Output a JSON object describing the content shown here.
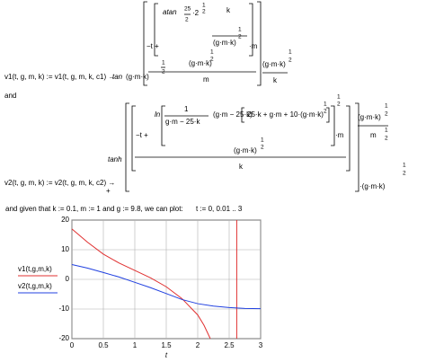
{
  "equation1": [
    "v1(t, g, m, k) := v1(t, g, m, k, c1) →",
    "tan",
    "(g·m·k)",
    "1",
    "2",
    "atan",
    "25",
    "2",
    "·2",
    "1",
    "2",
    "k",
    "(g·m·k)",
    "1",
    "2",
    "−t +",
    "·m",
    "(g·m·k)",
    "1",
    "2",
    "m",
    "(g·m·k)",
    "1",
    "2",
    "k"
  ],
  "connector": "and",
  "equation2": [
    "v2(t, g, m, k) := v2(t, g, m, k, c2) →",
    "tanh",
    "−t +",
    "ln",
    "1",
    "g·m − 25·k",
    "(g·m − 25·k)",
    "25·k + g·m + 10·(g·m·k)",
    "1",
    "2",
    "1",
    "2",
    "·m",
    "(g·m·k)",
    "1",
    "2",
    "k",
    "(g·m·k)",
    "1",
    "2",
    "m",
    "1",
    "2",
    "·(g·m·k)",
    "1",
    "2"
  ],
  "insert_mark": "+",
  "given_text": "and given that  k := 0.1, m := 1  and  g := 9.8, we can plot:",
  "range_def": "t := 0, 0.01 .. 3",
  "chart_data": {
    "type": "line",
    "xlabel": "t",
    "xlim": [
      0,
      3
    ],
    "ylim": [
      -20,
      20
    ],
    "xticks": [
      0,
      0.5,
      1,
      1.5,
      2,
      2.5,
      3
    ],
    "yticks": [
      -20,
      -10,
      0,
      10,
      20
    ],
    "grid": true,
    "marker_x": 2.62,
    "marker_color": "#e03030",
    "series": [
      {
        "name": "v1(t,g,m,k)",
        "color": "#e03030",
        "x": [
          0,
          0.25,
          0.5,
          0.75,
          1,
          1.25,
          1.5,
          1.75,
          2,
          2.1,
          2.2
        ],
        "values": [
          17,
          12.5,
          8.5,
          5.5,
          3,
          0.5,
          -2.5,
          -6.5,
          -12,
          -15.5,
          -20
        ]
      },
      {
        "name": "v2(t,g,m,k)",
        "color": "#2040e0",
        "x": [
          0,
          0.25,
          0.5,
          0.75,
          1,
          1.25,
          1.5,
          1.75,
          2,
          2.25,
          2.5,
          2.75,
          3
        ],
        "values": [
          5,
          3.8,
          2.3,
          0.8,
          -1,
          -2.8,
          -4.8,
          -6.8,
          -8.2,
          -9,
          -9.5,
          -9.8,
          -9.9
        ]
      }
    ]
  }
}
